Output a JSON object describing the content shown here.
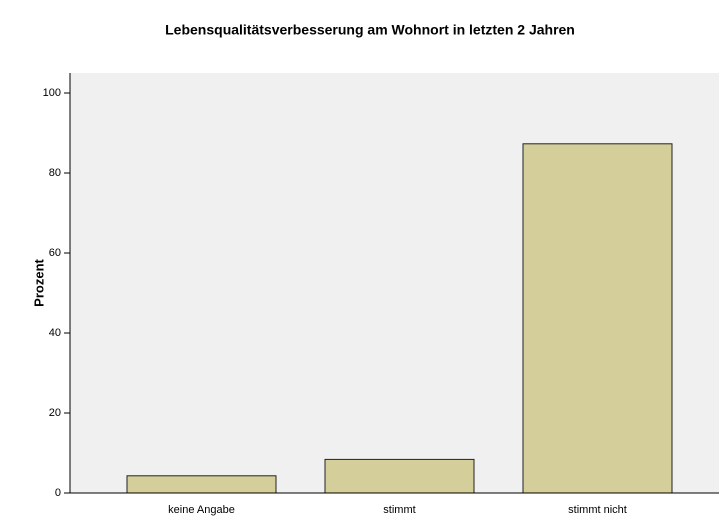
{
  "chart_data": {
    "type": "bar",
    "title": "Lebensqualitätsverbesserung am Wohnort in letzten 2 Jahren",
    "y_label": "Prozent",
    "categories": [
      "keine Angabe",
      "stimmt",
      "stimmt nicht"
    ],
    "values": [
      4.3,
      8.4,
      87.3
    ],
    "color": "#d3ce9a",
    "ylim": [
      0,
      105
    ],
    "yticks": [
      0,
      20,
      40,
      60,
      80,
      100
    ]
  }
}
